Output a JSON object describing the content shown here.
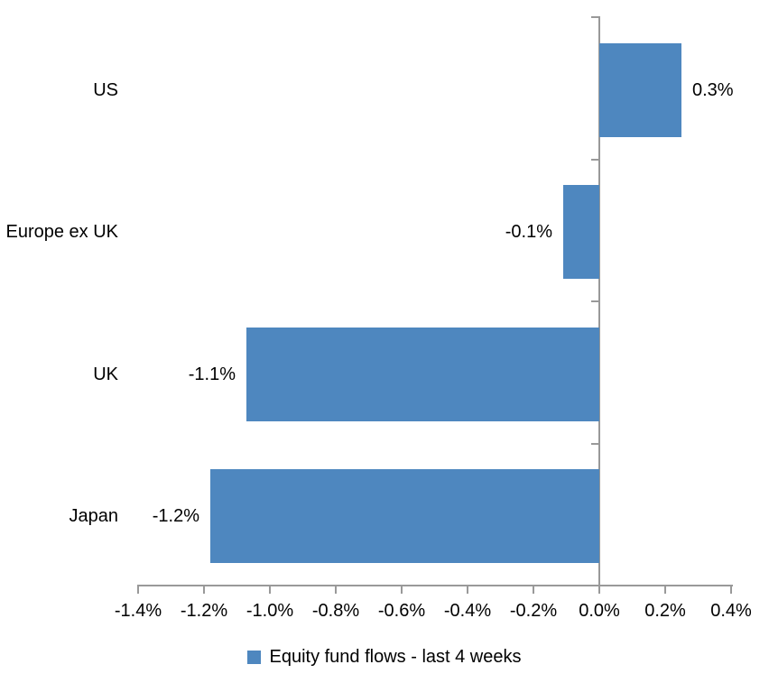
{
  "chart_data": {
    "type": "bar",
    "orientation": "horizontal",
    "title": "",
    "xlabel": "",
    "ylabel": "",
    "categories": [
      "US",
      "Europe ex UK",
      "UK",
      "Japan"
    ],
    "values": [
      0.3,
      -0.1,
      -1.1,
      -1.2
    ],
    "bar_extents": [
      0.25,
      -0.11,
      -1.07,
      -1.18
    ],
    "value_labels": [
      "0.3%",
      "-0.1%",
      "-1.1%",
      "-1.2%"
    ],
    "series_name": "Equity fund flows - last 4 weeks",
    "x_ticks": [
      "-1.4%",
      "-1.2%",
      "-1.0%",
      "-0.8%",
      "-0.6%",
      "-0.4%",
      "-0.2%",
      "0.0%",
      "0.2%",
      "0.4%"
    ],
    "x_tick_values": [
      -1.4,
      -1.2,
      -1.0,
      -0.8,
      -0.6,
      -0.4,
      -0.2,
      0.0,
      0.2,
      0.4
    ],
    "xlim": [
      -1.4,
      0.4
    ],
    "grid": false,
    "legend_position": "bottom",
    "bar_color": "#4E87BF",
    "axis_color": "#999999",
    "text_color": "#000000"
  }
}
